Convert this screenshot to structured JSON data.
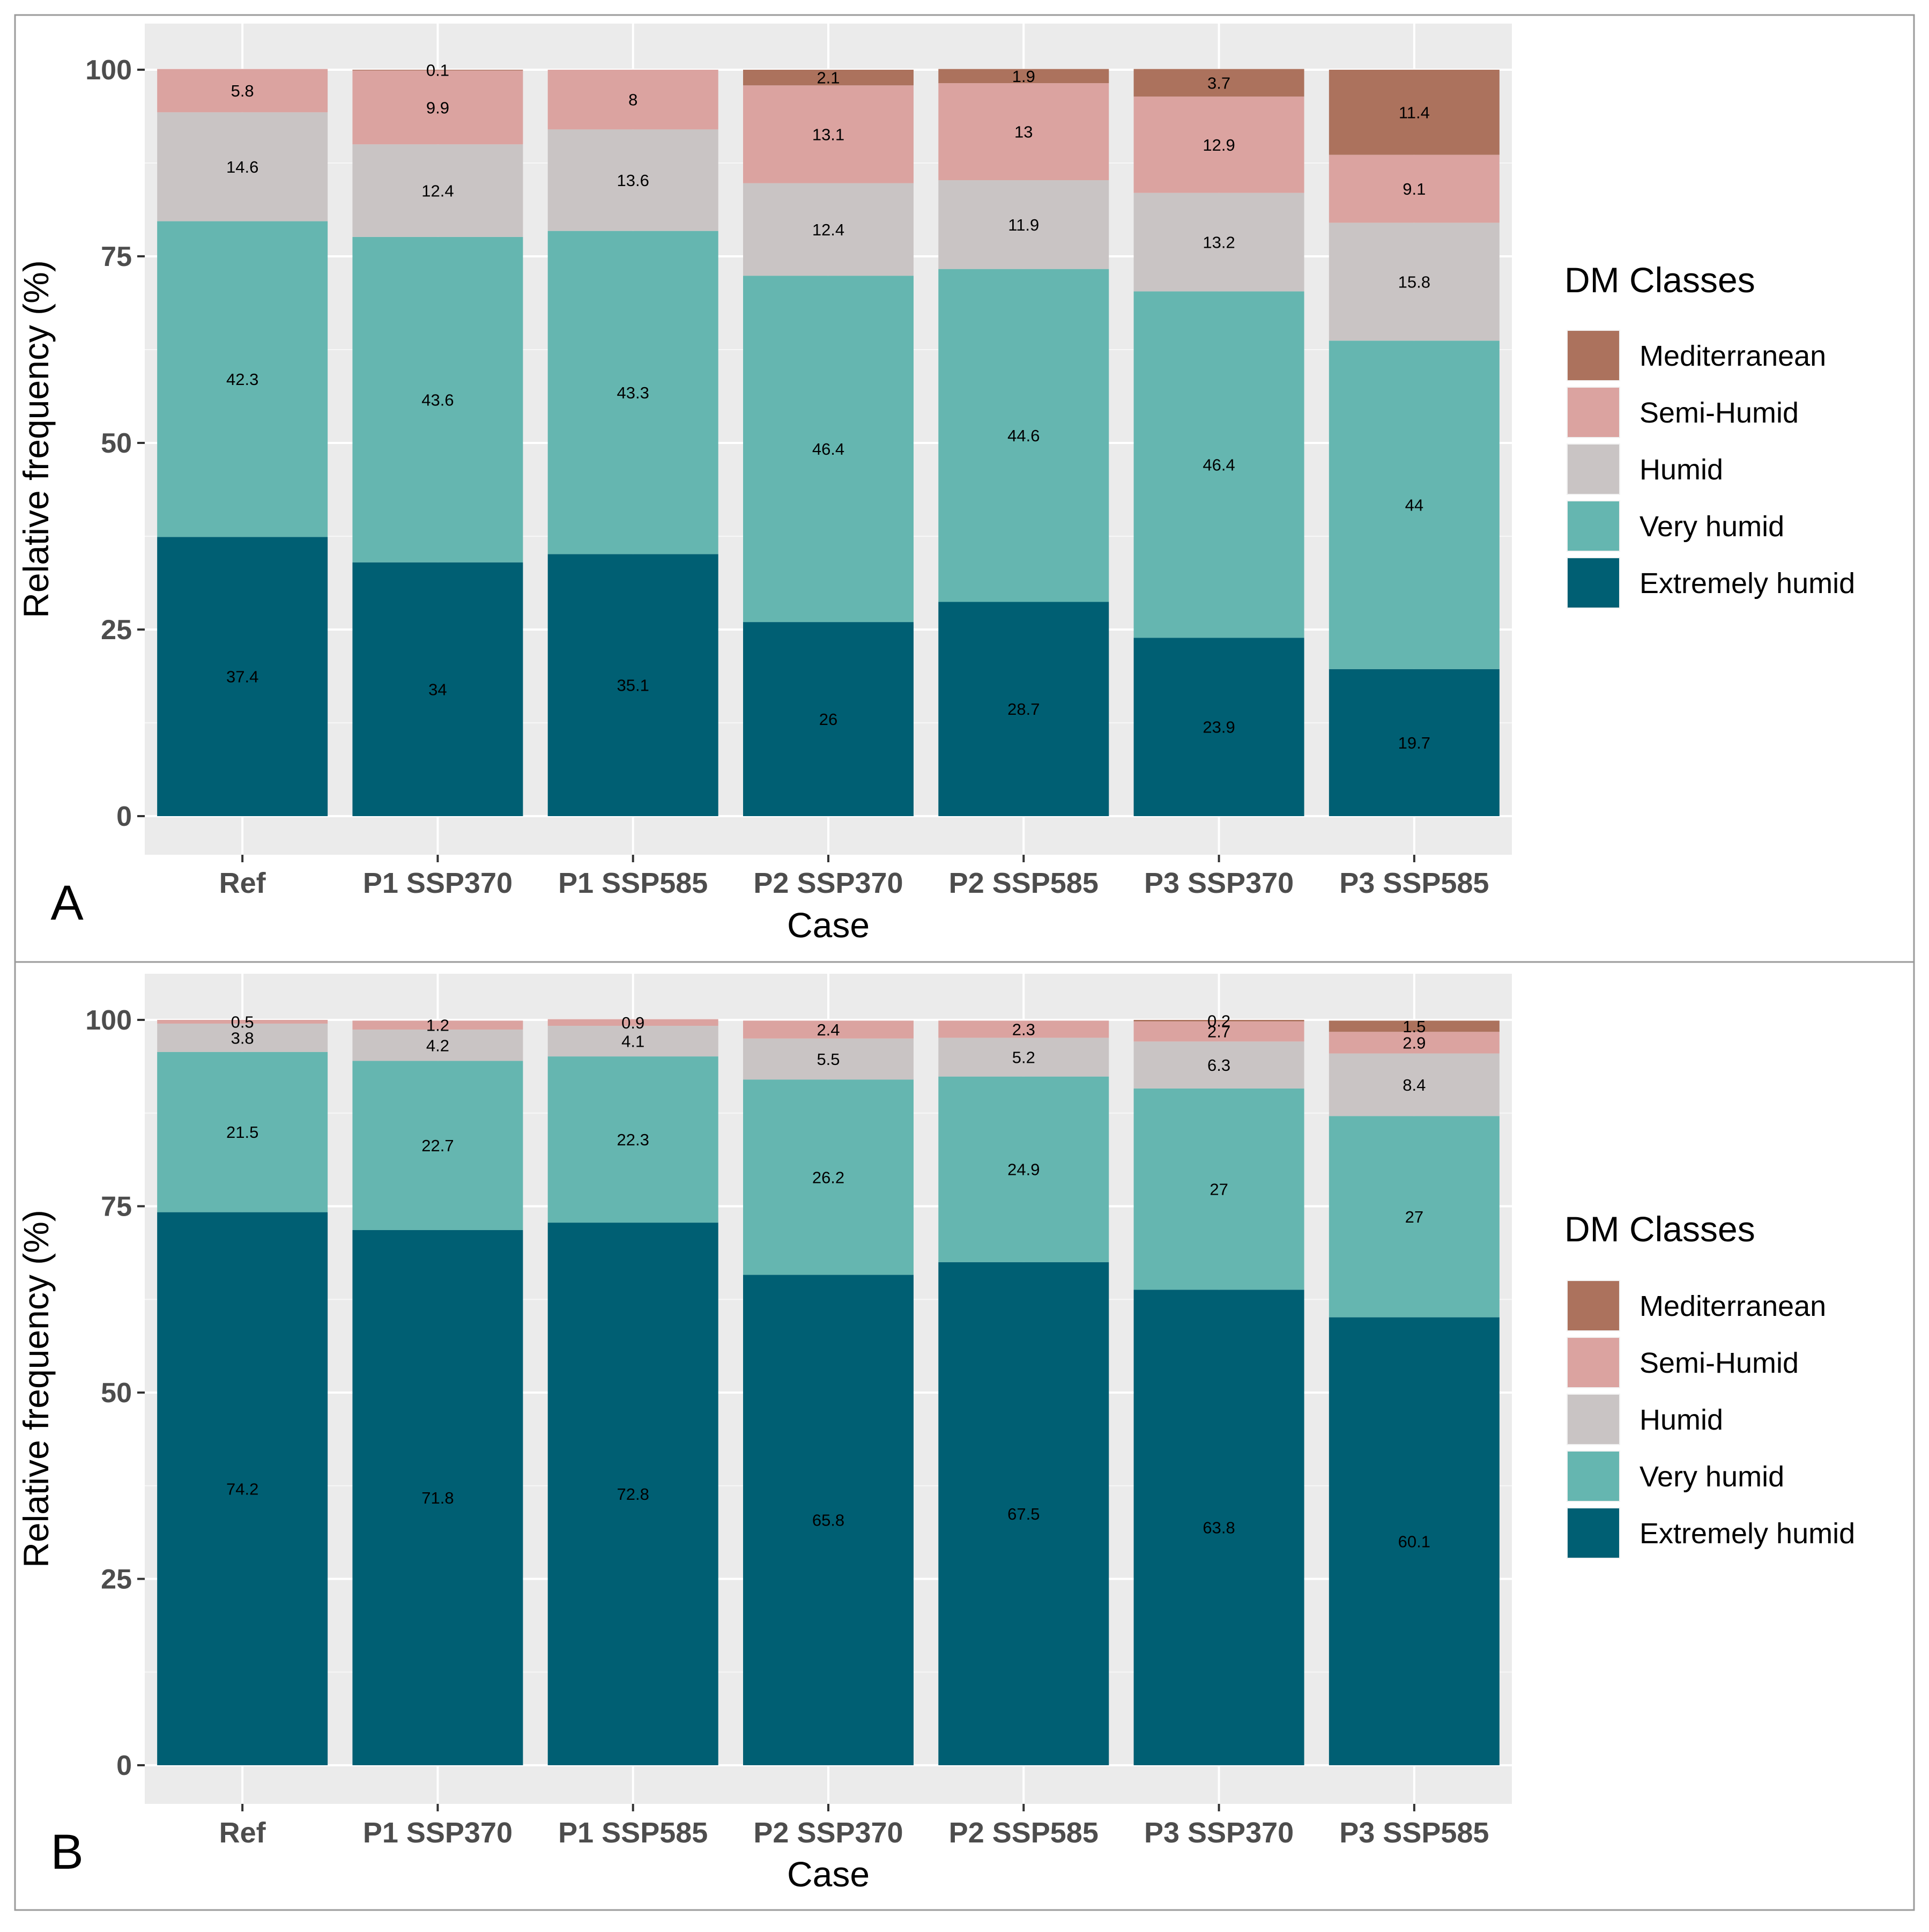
{
  "chart_data": [
    {
      "type": "bar",
      "stacked": true,
      "panel_label": "A",
      "title": "",
      "xlabel": "Case",
      "ylabel": "Relative frequency (%)",
      "ylim": [
        0,
        100
      ],
      "yticks": [
        0,
        25,
        50,
        75,
        100
      ],
      "grid": true,
      "legend_title": "DM Classes",
      "legend_position": "right",
      "categories": [
        "Ref",
        "P1 SSP370",
        "P1 SSP585",
        "P2 SSP370",
        "P2 SSP585",
        "P3 SSP370",
        "P3 SSP585"
      ],
      "series": [
        {
          "name": "Extremely humid",
          "color": "#005f73",
          "values": [
            37.4,
            34,
            35.1,
            26,
            28.7,
            23.9,
            19.7
          ],
          "labels": [
            "37.4",
            "34",
            "35.1",
            "26",
            "28.7",
            "23.9",
            "19.7"
          ]
        },
        {
          "name": "Very humid",
          "color": "#65b6b0",
          "values": [
            42.3,
            43.6,
            43.3,
            46.4,
            44.6,
            46.4,
            44
          ],
          "labels": [
            "42.3",
            "43.6",
            "43.3",
            "46.4",
            "44.6",
            "46.4",
            "44"
          ]
        },
        {
          "name": "Humid",
          "color": "#c9c4c4",
          "values": [
            14.6,
            12.4,
            13.6,
            12.4,
            11.9,
            13.2,
            15.8
          ],
          "labels": [
            "14.6",
            "12.4",
            "13.6",
            "12.4",
            "11.9",
            "13.2",
            "15.8"
          ]
        },
        {
          "name": "Semi-Humid",
          "color": "#dba3a0",
          "values": [
            5.8,
            9.9,
            8,
            13.1,
            13,
            12.9,
            9.1
          ],
          "labels": [
            "5.8",
            "9.9",
            "8",
            "13.1",
            "13",
            "12.9",
            "9.1"
          ]
        },
        {
          "name": "Mediterranean",
          "color": "#ac725d",
          "values": [
            0,
            0.1,
            0,
            2.1,
            1.9,
            3.7,
            11.4
          ],
          "labels": [
            "",
            "0.1",
            "",
            "2.1",
            "1.9",
            "3.7",
            "11.4"
          ]
        }
      ]
    },
    {
      "type": "bar",
      "stacked": true,
      "panel_label": "B",
      "title": "",
      "xlabel": "Case",
      "ylabel": "Relative frequency (%)",
      "ylim": [
        0,
        100
      ],
      "yticks": [
        0,
        25,
        50,
        75,
        100
      ],
      "grid": true,
      "legend_title": "DM Classes",
      "legend_position": "right",
      "categories": [
        "Ref",
        "P1 SSP370",
        "P1 SSP585",
        "P2 SSP370",
        "P2 SSP585",
        "P3 SSP370",
        "P3 SSP585"
      ],
      "series": [
        {
          "name": "Extremely humid",
          "color": "#005f73",
          "values": [
            74.2,
            71.8,
            72.8,
            65.8,
            67.5,
            63.8,
            60.1
          ],
          "labels": [
            "74.2",
            "71.8",
            "72.8",
            "65.8",
            "67.5",
            "63.8",
            "60.1"
          ]
        },
        {
          "name": "Very humid",
          "color": "#65b6b0",
          "values": [
            21.5,
            22.7,
            22.3,
            26.2,
            24.9,
            27,
            27
          ],
          "labels": [
            "21.5",
            "22.7",
            "22.3",
            "26.2",
            "24.9",
            "27",
            "27"
          ]
        },
        {
          "name": "Humid",
          "color": "#c9c4c4",
          "values": [
            3.8,
            4.2,
            4.1,
            5.5,
            5.2,
            6.3,
            8.4
          ],
          "labels": [
            "3.8",
            "4.2",
            "4.1",
            "5.5",
            "5.2",
            "6.3",
            "8.4"
          ]
        },
        {
          "name": "Semi-Humid",
          "color": "#dba3a0",
          "values": [
            0.5,
            1.2,
            0.9,
            2.4,
            2.3,
            2.7,
            2.9
          ],
          "labels": [
            "0.5",
            "1.2",
            "0.9",
            "2.4",
            "2.3",
            "2.7",
            "2.9"
          ]
        },
        {
          "name": "Mediterranean",
          "color": "#ac725d",
          "values": [
            0,
            0,
            0,
            0,
            0,
            0.2,
            1.5
          ],
          "labels": [
            "",
            "",
            "",
            "",
            "",
            "0.2",
            "1.5"
          ]
        }
      ]
    }
  ],
  "legend_order": [
    "Mediterranean",
    "Semi-Humid",
    "Humid",
    "Very humid",
    "Extremely humid"
  ]
}
